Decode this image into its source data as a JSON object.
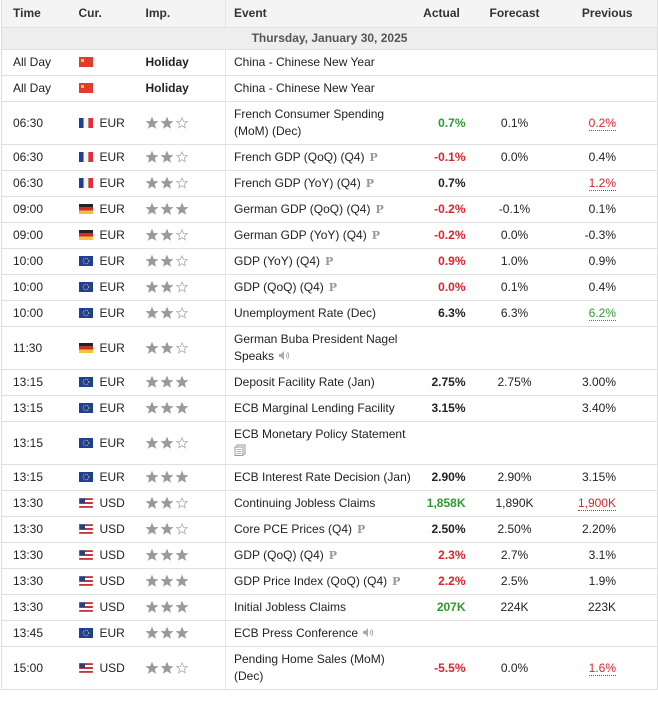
{
  "header": [
    "Time",
    "Cur.",
    "Imp.",
    "Event",
    "Actual",
    "Forecast",
    "Previous"
  ],
  "date": "Thursday, January 30, 2025",
  "rows": [
    {
      "time": "All Day",
      "flag": "cn",
      "importance_label": "Holiday",
      "event": "China - Chinese New Year"
    },
    {
      "time": "All Day",
      "flag": "cn",
      "importance_label": "Holiday",
      "event": "China - Chinese New Year"
    },
    {
      "time": "06:30",
      "flag": "fr",
      "currency": "EUR",
      "importance": 2,
      "event": "French Consumer Spending (MoM) (Dec)",
      "actual": "0.7%",
      "actual_color": "#2e9b2e",
      "forecast": "0.1%",
      "previous": "0.2%",
      "previous_color": "#d9262b"
    },
    {
      "time": "06:30",
      "flag": "fr",
      "currency": "EUR",
      "importance": 2,
      "event": "French GDP (QoQ) (Q4)",
      "badge": "P",
      "actual": "-0.1%",
      "actual_color": "#d9262b",
      "forecast": "0.0%",
      "previous": "0.4%"
    },
    {
      "time": "06:30",
      "flag": "fr",
      "currency": "EUR",
      "importance": 2,
      "event": "French GDP (YoY) (Q4)",
      "badge": "P",
      "actual": "0.7%",
      "previous": "1.2%",
      "previous_color": "#d9262b"
    },
    {
      "time": "09:00",
      "flag": "de",
      "currency": "EUR",
      "importance": 3,
      "event": "German GDP (QoQ) (Q4)",
      "badge": "P",
      "actual": "-0.2%",
      "actual_color": "#d9262b",
      "forecast": "-0.1%",
      "previous": "0.1%"
    },
    {
      "time": "09:00",
      "flag": "de",
      "currency": "EUR",
      "importance": 2,
      "event": "German GDP (YoY) (Q4)",
      "badge": "P",
      "actual": "-0.2%",
      "actual_color": "#d9262b",
      "forecast": "0.0%",
      "previous": "-0.3%"
    },
    {
      "time": "10:00",
      "flag": "eu",
      "currency": "EUR",
      "importance": 2,
      "event": "GDP (YoY) (Q4)",
      "badge": "P",
      "actual": "0.9%",
      "actual_color": "#d9262b",
      "forecast": "1.0%",
      "previous": "0.9%"
    },
    {
      "time": "10:00",
      "flag": "eu",
      "currency": "EUR",
      "importance": 2,
      "event": "GDP (QoQ) (Q4)",
      "badge": "P",
      "actual": "0.0%",
      "actual_color": "#d9262b",
      "forecast": "0.1%",
      "previous": "0.4%"
    },
    {
      "time": "10:00",
      "flag": "eu",
      "currency": "EUR",
      "importance": 2,
      "event": "Unemployment Rate (Dec)",
      "actual": "6.3%",
      "forecast": "6.3%",
      "previous": "6.2%",
      "previous_color": "#2e9b2e"
    },
    {
      "time": "11:30",
      "flag": "de",
      "currency": "EUR",
      "importance": 2,
      "event": "German Buba President Nagel Speaks",
      "icon": "speaker"
    },
    {
      "time": "13:15",
      "flag": "eu",
      "currency": "EUR",
      "importance": 3,
      "event": "Deposit Facility Rate (Jan)",
      "actual": "2.75%",
      "forecast": "2.75%",
      "previous": "3.00%"
    },
    {
      "time": "13:15",
      "flag": "eu",
      "currency": "EUR",
      "importance": 3,
      "event": "ECB Marginal Lending Facility",
      "actual": "3.15%",
      "previous": "3.40%"
    },
    {
      "time": "13:15",
      "flag": "eu",
      "currency": "EUR",
      "importance": 2,
      "event": "ECB Monetary Policy Statement",
      "icon": "document"
    },
    {
      "time": "13:15",
      "flag": "eu",
      "currency": "EUR",
      "importance": 3,
      "event": "ECB Interest Rate Decision (Jan)",
      "actual": "2.90%",
      "forecast": "2.90%",
      "previous": "3.15%"
    },
    {
      "time": "13:30",
      "flag": "us",
      "currency": "USD",
      "importance": 2,
      "event": "Continuing Jobless Claims",
      "actual": "1,858K",
      "actual_color": "#2e9b2e",
      "forecast": "1,890K",
      "previous": "1,900K",
      "previous_color": "#d9262b"
    },
    {
      "time": "13:30",
      "flag": "us",
      "currency": "USD",
      "importance": 2,
      "event": "Core PCE Prices (Q4)",
      "badge": "P",
      "actual": "2.50%",
      "forecast": "2.50%",
      "previous": "2.20%"
    },
    {
      "time": "13:30",
      "flag": "us",
      "currency": "USD",
      "importance": 3,
      "event": "GDP (QoQ) (Q4)",
      "badge": "P",
      "actual": "2.3%",
      "actual_color": "#d9262b",
      "forecast": "2.7%",
      "previous": "3.1%"
    },
    {
      "time": "13:30",
      "flag": "us",
      "currency": "USD",
      "importance": 3,
      "event": "GDP Price Index (QoQ) (Q4)",
      "badge": "P",
      "actual": "2.2%",
      "actual_color": "#d9262b",
      "forecast": "2.5%",
      "previous": "1.9%"
    },
    {
      "time": "13:30",
      "flag": "us",
      "currency": "USD",
      "importance": 3,
      "event": "Initial Jobless Claims",
      "actual": "207K",
      "actual_color": "#2e9b2e",
      "forecast": "224K",
      "previous": "223K"
    },
    {
      "time": "13:45",
      "flag": "eu",
      "currency": "EUR",
      "importance": 3,
      "event": "ECB Press Conference",
      "icon": "speaker"
    },
    {
      "time": "15:00",
      "flag": "us",
      "currency": "USD",
      "importance": 2,
      "event": "Pending Home Sales (MoM) (Dec)",
      "actual": "-5.5%",
      "actual_color": "#d9262b",
      "forecast": "0.0%",
      "previous": "1.6%",
      "previous_color": "#d9262b"
    }
  ]
}
